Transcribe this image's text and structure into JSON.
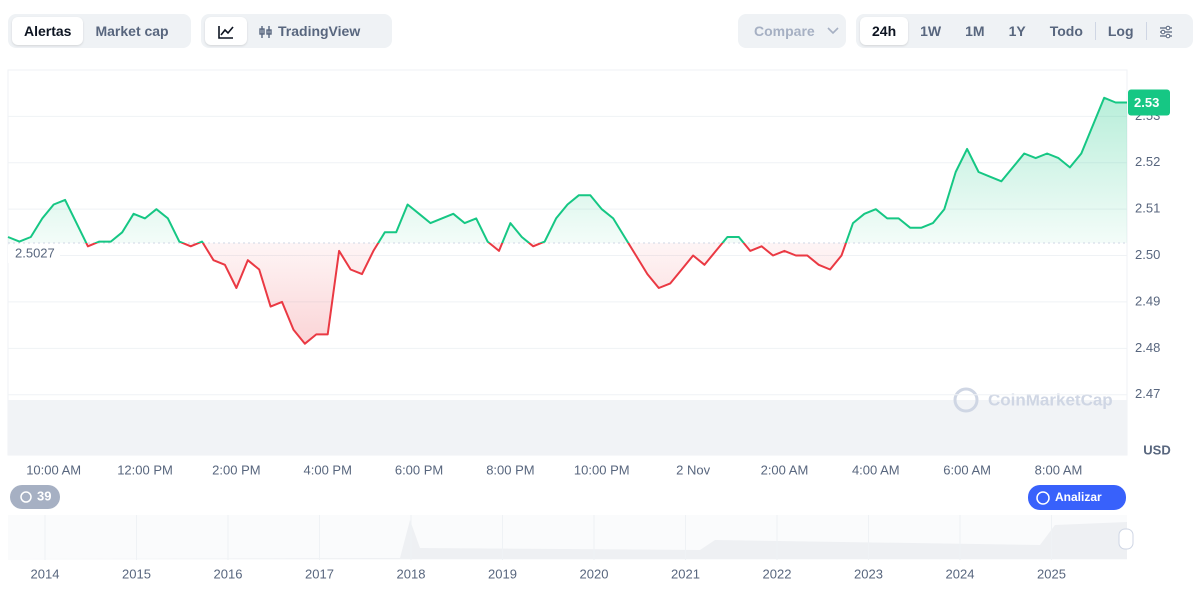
{
  "toolbar": {
    "view_tabs": [
      "Alertas",
      "Market cap"
    ],
    "chart_tab": "TradingView",
    "compare": "Compare",
    "ranges": [
      "24h",
      "1W",
      "1M",
      "1Y",
      "Todo"
    ],
    "log": "Log"
  },
  "chart_data": {
    "type": "line",
    "categories": [
      null,
      null,
      null,
      null,
      "10:00 AM",
      null,
      null,
      null,
      null,
      null,
      null,
      null,
      "12:00 PM",
      null,
      null,
      null,
      null,
      null,
      null,
      null,
      "2:00 PM",
      null,
      null,
      null,
      null,
      null,
      null,
      null,
      "4:00 PM",
      null,
      null,
      null,
      null,
      null,
      null,
      null,
      "6:00 PM",
      null,
      null,
      null,
      null,
      null,
      null,
      null,
      "8:00 PM",
      null,
      null,
      null,
      null,
      null,
      null,
      null,
      "10:00 PM",
      null,
      null,
      null,
      null,
      null,
      null,
      null,
      "2 Nov",
      null,
      null,
      null,
      null,
      null,
      null,
      null,
      "2:00 AM",
      null,
      null,
      null,
      null,
      null,
      null,
      null,
      "4:00 AM",
      null,
      null,
      null,
      null,
      null,
      null,
      null,
      "6:00 AM",
      null,
      null,
      null,
      null,
      null,
      null,
      null,
      "8:00 AM",
      null,
      null,
      null,
      null,
      null,
      null
    ],
    "values": [
      2.504,
      2.503,
      2.504,
      2.508,
      2.511,
      2.512,
      2.507,
      2.502,
      2.503,
      2.503,
      2.505,
      2.509,
      2.508,
      2.51,
      2.508,
      2.503,
      2.502,
      2.503,
      2.499,
      2.498,
      2.493,
      2.499,
      2.497,
      2.489,
      2.49,
      2.484,
      2.481,
      2.483,
      2.483,
      2.501,
      2.497,
      2.496,
      2.501,
      2.505,
      2.505,
      2.511,
      2.509,
      2.507,
      2.508,
      2.509,
      2.507,
      2.508,
      2.503,
      2.501,
      2.507,
      2.504,
      2.502,
      2.503,
      2.508,
      2.511,
      2.513,
      2.513,
      2.51,
      2.508,
      2.504,
      2.5,
      2.496,
      2.493,
      2.494,
      2.497,
      2.5,
      2.498,
      2.501,
      2.504,
      2.504,
      2.501,
      2.502,
      2.5,
      2.501,
      2.5,
      2.5,
      2.498,
      2.497,
      2.5,
      2.507,
      2.509,
      2.51,
      2.508,
      2.508,
      2.506,
      2.506,
      2.507,
      2.51,
      2.518,
      2.523,
      2.518,
      2.517,
      2.516,
      2.519,
      2.522,
      2.521,
      2.522,
      2.521,
      2.519,
      2.522,
      2.528,
      2.534,
      2.533,
      2.533
    ],
    "baseline": 2.5027,
    "colors": {
      "above": "#16c784",
      "below": "#ea3943"
    },
    "current_price": {
      "value": 2.533,
      "label": "2.53"
    },
    "ylim": [
      2.457,
      2.54
    ],
    "yticks": [
      {
        "value": 2.47,
        "label": "2.47"
      },
      {
        "value": 2.48,
        "label": "2.48"
      },
      {
        "value": 2.49,
        "label": "2.49"
      },
      {
        "value": 2.5,
        "label": "2.50"
      },
      {
        "value": 2.51,
        "label": "2.51"
      },
      {
        "value": 2.52,
        "label": "2.52"
      },
      {
        "value": 2.53,
        "label": "2.53"
      }
    ],
    "y_unit": "USD",
    "grid": true,
    "watermark": "CoinMarketCap",
    "alerts_count": 39,
    "analyze_button": "Analizar",
    "navigator_years": [
      "2014",
      "2015",
      "2016",
      "2017",
      "2018",
      "2019",
      "2020",
      "2021",
      "2022",
      "2023",
      "2024",
      "2025"
    ]
  }
}
